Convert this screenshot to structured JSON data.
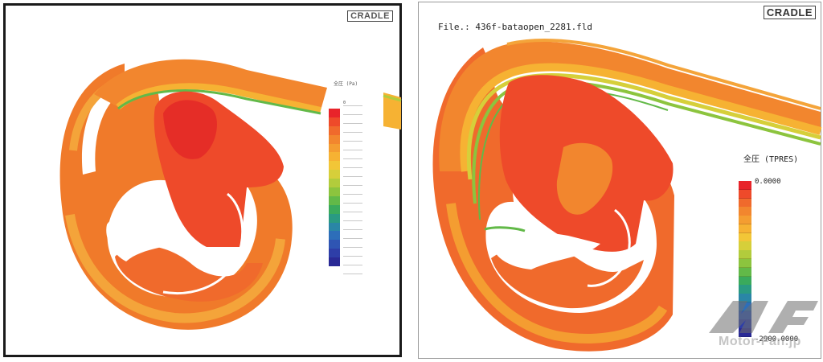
{
  "left_panel": {
    "logo": "CRADLE",
    "legend_title": "全圧 (Pa)",
    "legend_top": "0"
  },
  "right_panel": {
    "logo": "CRADLE",
    "file_label": "File.: 436f-bataopen_2281.fld",
    "legend_title": "全圧 (TPRES)",
    "legend_max": "0.0000",
    "legend_min": "-2900.0000"
  },
  "colormap": [
    "#e8242a",
    "#ee4a2a",
    "#f06a2c",
    "#f2862e",
    "#f49d31",
    "#f6b233",
    "#f2c637",
    "#d6cf3a",
    "#b2cc3c",
    "#8cc43e",
    "#62b948",
    "#3aaa5c",
    "#2a9a82",
    "#2a86a6",
    "#2d6eb9",
    "#2f55b3",
    "#2e3ea8",
    "#2a2a96"
  ],
  "colors": {
    "orange": "#f07a2a",
    "red": "#e52d27",
    "light_orange": "#f4a43a",
    "green": "#6fbb44"
  },
  "watermark": {
    "logo": "MF",
    "text": "Motor-Fan.jp"
  },
  "icons": {
    "watermark": "motorfan-logo-icon"
  }
}
